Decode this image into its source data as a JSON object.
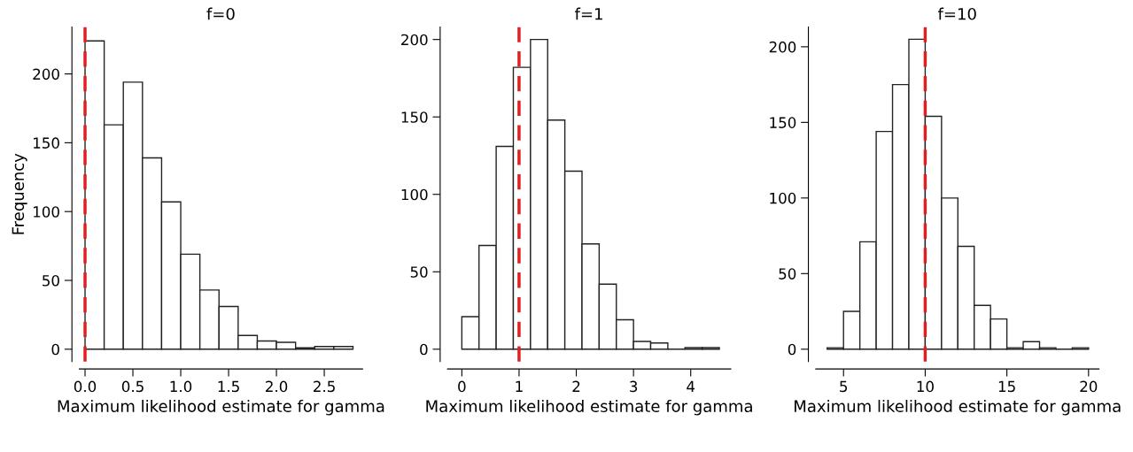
{
  "chart_data": [
    {
      "type": "histogram",
      "title": "f=0",
      "xlabel": "Maximum likelihood estimate for gamma",
      "ylabel": "Frequency",
      "bins": [
        0,
        0.2,
        0.4,
        0.6,
        0.8,
        1.0,
        1.2,
        1.4,
        1.6,
        1.8,
        2.0,
        2.2,
        2.4,
        2.6,
        2.8
      ],
      "values": [
        224,
        163,
        194,
        139,
        107,
        69,
        43,
        31,
        10,
        6,
        5,
        1,
        2,
        2
      ],
      "xlim": [
        -0.06,
        2.9
      ],
      "xticks": [
        {
          "value": 0,
          "label": "0.0"
        },
        0.5,
        {
          "value": 1,
          "label": "1.0"
        },
        1.5,
        {
          "value": 2,
          "label": "2.0"
        },
        2.5
      ],
      "ylim": [
        -9,
        234
      ],
      "yticks": [
        0,
        50,
        100,
        150,
        200
      ],
      "ref_lines": [
        {
          "axis": "x",
          "value": 0,
          "color": "#e02020",
          "line_style": "dashed"
        }
      ],
      "grid": false,
      "legend": false
    },
    {
      "type": "histogram",
      "title": "f=1",
      "xlabel": "Maximum likelihood estimate for gamma",
      "bins": [
        0,
        0.3,
        0.6,
        0.9,
        1.2,
        1.5,
        1.8,
        2.1,
        2.4,
        2.7,
        3.0,
        3.3,
        3.6,
        3.9,
        4.2,
        4.5
      ],
      "values": [
        21,
        67,
        131,
        182,
        200,
        148,
        115,
        68,
        42,
        19,
        5,
        4,
        0,
        1,
        1
      ],
      "xlim": [
        -0.25,
        4.7
      ],
      "xticks": [
        0,
        1,
        2,
        3,
        4
      ],
      "ylim": [
        -8,
        208
      ],
      "yticks": [
        0,
        50,
        100,
        150,
        200
      ],
      "ref_lines": [
        {
          "axis": "x",
          "value": 1,
          "color": "#e02020",
          "line_style": "dashed"
        }
      ],
      "grid": false,
      "legend": false
    },
    {
      "type": "histogram",
      "title": "f=10",
      "xlabel": "Maximum likelihood estimate for gamma",
      "bins": [
        4,
        5,
        6,
        7,
        8,
        9,
        10,
        11,
        12,
        13,
        14,
        15,
        16,
        17,
        18,
        19,
        20
      ],
      "values": [
        1,
        25,
        71,
        144,
        175,
        205,
        154,
        100,
        68,
        29,
        20,
        1,
        5,
        1,
        0,
        1
      ],
      "xlim": [
        3.3,
        20.64
      ],
      "xticks": [
        5,
        10,
        15,
        20
      ],
      "ylim": [
        -8.2,
        213
      ],
      "yticks": [
        0,
        50,
        100,
        150,
        200
      ],
      "ref_lines": [
        {
          "axis": "x",
          "value": 10,
          "color": "#e02020",
          "line_style": "dashed"
        }
      ],
      "grid": false,
      "legend": false
    }
  ]
}
